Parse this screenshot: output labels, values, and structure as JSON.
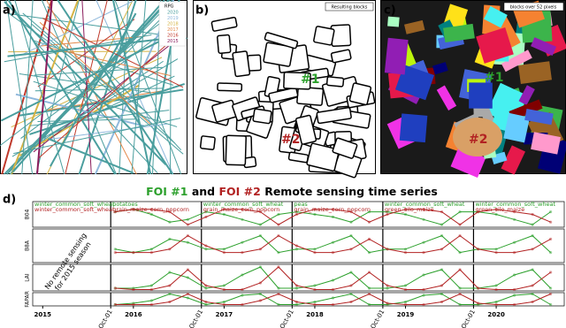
{
  "panels": {
    "a": {
      "label": "a)",
      "legend_title": "RPG",
      "legend": [
        {
          "label": "2020",
          "color": "#4a9e9e"
        },
        {
          "label": "2019",
          "color": "#8fb8dc"
        },
        {
          "label": "2018",
          "color": "#d6b446"
        },
        {
          "label": "2017",
          "color": "#e3894a"
        },
        {
          "label": "2016",
          "color": "#c0392b"
        },
        {
          "label": "2015",
          "color": "#8a1c5c"
        }
      ]
    },
    "b": {
      "label": "b)",
      "box": "Resulting blocks",
      "foi1": "#1",
      "foi2": "#2"
    },
    "c": {
      "label": "c)",
      "box": "blocks over 52 pixels",
      "foi1": "#1",
      "foi2": "#2"
    },
    "d": {
      "label": "d)",
      "note": [
        "No remote sensing",
        "for 2015 season"
      ]
    }
  },
  "chart_data": [
    {
      "type": "line",
      "ylabel": "B04",
      "title_parts": [
        "and",
        "Remote sensing time series"
      ],
      "seasons": [
        {
          "foi1": "winter_common_soft_wheat",
          "foi2": "winter_common_soft_wheat"
        },
        {
          "foi1": "potatoes",
          "foi2": "grain_maize_corn_popcorn"
        },
        {
          "foi1": "winter_common_soft_wheat",
          "foi2": "grain_maize_corn_popcorn"
        },
        {
          "foi1": "peas",
          "foi2": "grain_maize_corn_popcorn"
        },
        {
          "foi1": "winter_common_soft_wheat",
          "foi2": "green_silo_maize"
        },
        {
          "foi1": "winter_common_soft_wheat",
          "foi2": "green_silo_maize"
        }
      ],
      "x": [
        2015.8,
        2016.0,
        2016.2,
        2016.4,
        2016.6,
        2016.8,
        2017.0,
        2017.2,
        2017.4,
        2017.6,
        2017.8,
        2018.0,
        2018.2,
        2018.4,
        2018.6,
        2018.8,
        2019.0,
        2019.2,
        2019.4,
        2019.6,
        2019.8,
        2020.0,
        2020.2,
        2020.4,
        2020.6
      ],
      "xlim": [
        2014.89,
        2020.75
      ],
      "ylim": [
        0,
        1
      ],
      "series": [
        {
          "name": "FOI #1",
          "color": "#2ca02c",
          "values": [
            0.6,
            0.7,
            0.5,
            0.2,
            0.3,
            0.6,
            0.5,
            0.3,
            0.1,
            0.5,
            0.6,
            0.5,
            0.4,
            0.2,
            0.6,
            0.6,
            0.5,
            0.3,
            0.1,
            0.6,
            0.6,
            0.5,
            0.3,
            0.1,
            0.6
          ]
        },
        {
          "name": "FOI #2",
          "color": "#b22222",
          "values": [
            0.6,
            0.7,
            0.7,
            0.6,
            0.1,
            0.4,
            0.7,
            0.7,
            0.6,
            0.1,
            0.5,
            0.7,
            0.7,
            0.6,
            0.2,
            0.5,
            0.7,
            0.7,
            0.6,
            0.1,
            0.6,
            0.7,
            0.6,
            0.5,
            0.2
          ]
        }
      ]
    },
    {
      "type": "line",
      "ylabel": "B8A",
      "ylim": [
        0,
        1
      ],
      "series": [
        {
          "color": "#2ca02c",
          "values": [
            0.4,
            0.3,
            0.4,
            0.7,
            0.6,
            0.4,
            0.4,
            0.6,
            0.8,
            0.3,
            0.4,
            0.4,
            0.6,
            0.8,
            0.3,
            0.4,
            0.4,
            0.6,
            0.8,
            0.3,
            0.4,
            0.4,
            0.6,
            0.8,
            0.3
          ]
        },
        {
          "color": "#b22222",
          "values": [
            0.3,
            0.3,
            0.3,
            0.4,
            0.8,
            0.5,
            0.3,
            0.3,
            0.4,
            0.8,
            0.5,
            0.3,
            0.3,
            0.4,
            0.7,
            0.4,
            0.3,
            0.3,
            0.4,
            0.8,
            0.4,
            0.3,
            0.3,
            0.4,
            0.7
          ]
        }
      ]
    },
    {
      "type": "line",
      "ylabel": "LAI",
      "ylim": [
        0,
        1
      ],
      "series": [
        {
          "color": "#2ca02c",
          "values": [
            0.1,
            0.1,
            0.2,
            0.7,
            0.5,
            0.1,
            0.2,
            0.6,
            0.9,
            0.1,
            0.1,
            0.2,
            0.4,
            0.7,
            0.1,
            0.1,
            0.2,
            0.6,
            0.8,
            0.1,
            0.1,
            0.2,
            0.6,
            0.8,
            0.1
          ]
        },
        {
          "color": "#b22222",
          "values": [
            0.1,
            0.05,
            0.05,
            0.2,
            0.8,
            0.2,
            0.05,
            0.05,
            0.3,
            0.9,
            0.2,
            0.05,
            0.05,
            0.2,
            0.7,
            0.2,
            0.05,
            0.05,
            0.2,
            0.8,
            0.1,
            0.05,
            0.05,
            0.2,
            0.7
          ]
        }
      ]
    },
    {
      "type": "line",
      "ylabel": "FAPAR",
      "ylim": [
        0,
        1
      ],
      "xticks": [
        {
          "value": 2015.75,
          "label": "Oct-01"
        },
        {
          "value": 2016.75,
          "label": "Oct-01"
        },
        {
          "value": 2017.75,
          "label": "Oct-01"
        },
        {
          "value": 2018.75,
          "label": "Oct-01"
        },
        {
          "value": 2019.75,
          "label": "Oct-01"
        }
      ],
      "year_ticks": [
        2015,
        2016,
        2017,
        2018,
        2019,
        2020
      ],
      "series": [
        {
          "color": "#2ca02c",
          "values": [
            0.1,
            0.2,
            0.4,
            0.9,
            0.6,
            0.1,
            0.3,
            0.8,
            0.9,
            0.1,
            0.1,
            0.3,
            0.6,
            0.9,
            0.1,
            0.1,
            0.3,
            0.8,
            0.9,
            0.1,
            0.1,
            0.3,
            0.8,
            0.9,
            0.1
          ]
        },
        {
          "color": "#b22222",
          "values": [
            0.1,
            0.1,
            0.1,
            0.3,
            0.9,
            0.3,
            0.1,
            0.1,
            0.4,
            0.9,
            0.3,
            0.1,
            0.1,
            0.3,
            0.9,
            0.2,
            0.1,
            0.1,
            0.3,
            0.9,
            0.2,
            0.1,
            0.1,
            0.3,
            0.9
          ]
        }
      ]
    }
  ]
}
